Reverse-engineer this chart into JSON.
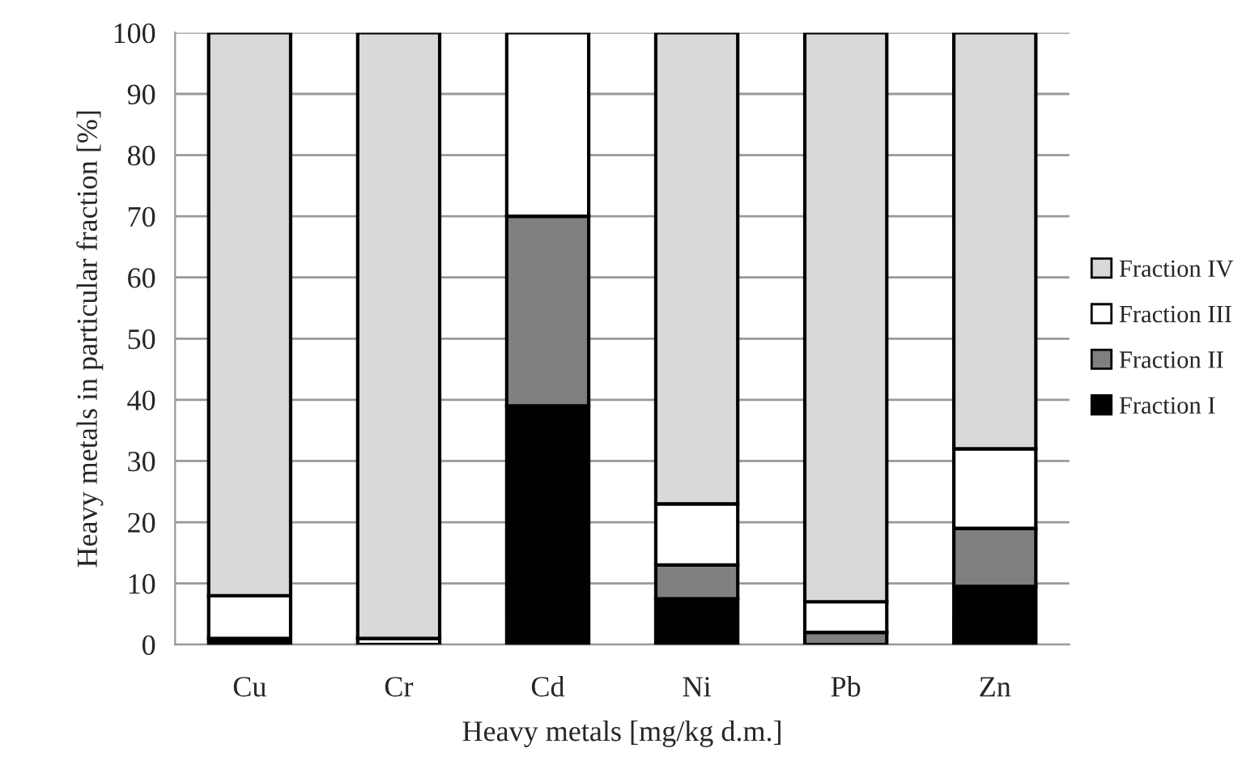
{
  "chart_data": {
    "type": "bar",
    "stacked": true,
    "xlabel": "Heavy metals [mg/kg d.m.]",
    "ylabel": "Heavy metals in particular fraction [%]",
    "categories": [
      "Cu",
      "Cr",
      "Cd",
      "Ni",
      "Pb",
      "Zn"
    ],
    "series": [
      {
        "name": "Fraction I",
        "color": "#000000",
        "values": [
          1,
          0,
          39,
          7.5,
          0,
          9.5
        ]
      },
      {
        "name": "Fraction II",
        "color": "#808080",
        "values": [
          0,
          0,
          31,
          5.5,
          2,
          9.5
        ]
      },
      {
        "name": "Fraction III",
        "color": "#ffffff",
        "values": [
          7,
          1,
          30,
          10,
          5,
          13
        ]
      },
      {
        "name": "Fraction IV",
        "color": "#d9d9d9",
        "values": [
          92,
          99,
          0,
          77,
          93,
          68
        ]
      }
    ],
    "ylim": [
      0,
      100
    ],
    "yticks": [
      0,
      10,
      20,
      30,
      40,
      50,
      60,
      70,
      80,
      90,
      100
    ],
    "grid": "y",
    "legend": "right"
  }
}
